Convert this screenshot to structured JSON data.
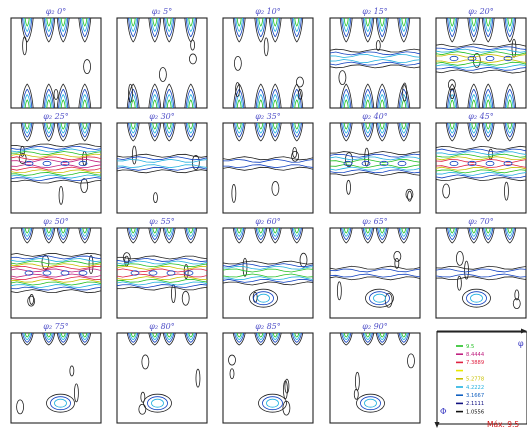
{
  "figure": {
    "panels": [
      {
        "title": "φ₂ 0°"
      },
      {
        "title": "φ₂ 5°"
      },
      {
        "title": "φ₂ 10°"
      },
      {
        "title": "φ₂ 15°"
      },
      {
        "title": "φ₂ 20°"
      },
      {
        "title": "φ₂ 25°"
      },
      {
        "title": "φ₂ 30°"
      },
      {
        "title": "φ₂ 35°"
      },
      {
        "title": "φ₂ 40°"
      },
      {
        "title": "φ₂ 45°"
      },
      {
        "title": "φ₂ 50°"
      },
      {
        "title": "φ₂ 55°"
      },
      {
        "title": "φ₂ 60°"
      },
      {
        "title": "φ₂ 65°"
      },
      {
        "title": "φ₂ 70°"
      },
      {
        "title": "φ₂ 75°"
      },
      {
        "title": "φ₂ 80°"
      },
      {
        "title": "φ₂ 85°"
      },
      {
        "title": "φ₂ 90°"
      }
    ],
    "legend": {
      "levels": [
        {
          "label": "9.5",
          "color": "#22c022"
        },
        {
          "label": "8.4444",
          "color": "#c02080"
        },
        {
          "label": "7.3889",
          "color": "#e02040"
        },
        {
          "label": "",
          "color": "#e8e800"
        },
        {
          "label": "5.2778",
          "color": "#c8c000"
        },
        {
          "label": "4.2222",
          "color": "#20b0e0"
        },
        {
          "label": "3.1667",
          "color": "#1060c0"
        },
        {
          "label": "2.1111",
          "color": "#101080"
        },
        {
          "label": "1.0556",
          "color": "#101010"
        }
      ],
      "max_text": "Máx. 9.5"
    },
    "axis_labels": {
      "x": "φ",
      "y": "Φ"
    }
  }
}
